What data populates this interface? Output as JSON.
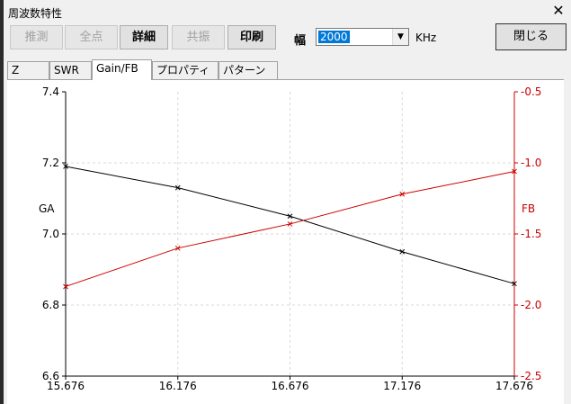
{
  "window": {
    "title": "周波数特性"
  },
  "toolbar": {
    "buttons": [
      {
        "label": "推測",
        "enabled": false
      },
      {
        "label": "全点",
        "enabled": false
      },
      {
        "label": "詳細",
        "enabled": true
      },
      {
        "label": "共振",
        "enabled": false
      },
      {
        "label": "印刷",
        "enabled": true
      }
    ],
    "width_label": "幅",
    "width_value": "2000",
    "width_unit": "KHz",
    "close_label": "閉じる"
  },
  "tabs": [
    {
      "label": "Z",
      "active": false
    },
    {
      "label": "SWR",
      "active": false
    },
    {
      "label": "Gain/FB",
      "active": true
    },
    {
      "label": "プロパティ",
      "active": false
    },
    {
      "label": "パターン",
      "active": false
    }
  ],
  "chart_data": {
    "type": "line",
    "x": [
      15.676,
      16.176,
      16.676,
      17.176,
      17.676
    ],
    "x_tick_labels": [
      "15.676",
      "16.176",
      "16.676",
      "17.176",
      "17.676"
    ],
    "xlim": [
      15.676,
      17.676
    ],
    "grid": true,
    "series": [
      {
        "name": "GA",
        "axis": "left",
        "color": "#000000",
        "values": [
          7.19,
          7.13,
          7.05,
          6.95,
          6.86
        ],
        "ylim": [
          6.6,
          7.4
        ],
        "y_ticks": [
          "7.4",
          "7.2",
          "7.0",
          "6.8",
          "6.6"
        ]
      },
      {
        "name": "FB",
        "axis": "right",
        "color": "#cc0000",
        "values": [
          -1.87,
          -1.6,
          -1.43,
          -1.22,
          -1.06
        ],
        "ylim": [
          -2.5,
          -0.5
        ],
        "y_ticks": [
          "-0.5",
          "-1.0",
          "-1.5",
          "-2.0",
          "-2.5"
        ]
      }
    ]
  }
}
